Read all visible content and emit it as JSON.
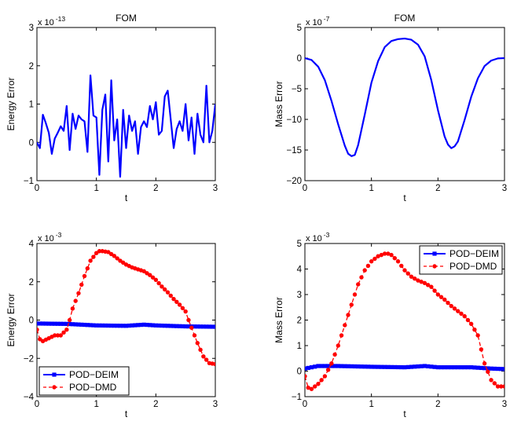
{
  "colors": {
    "blue": "#0000ff",
    "red": "#ff0000"
  },
  "chart_data": [
    {
      "type": "line",
      "title": "FOM",
      "xlabel": "t",
      "ylabel": "Energy Error",
      "exponent_label": "x 10",
      "exponent_power": "-13",
      "xlim": [
        0,
        3
      ],
      "ylim": [
        -1,
        3
      ],
      "xticks": [
        "0",
        "1",
        "2",
        "3"
      ],
      "yticks": [
        "−1",
        "0",
        "1",
        "2",
        "3"
      ],
      "series": [
        {
          "color": "#0000ff",
          "marker": "none",
          "x": [
            0,
            0.05,
            0.1,
            0.15,
            0.2,
            0.25,
            0.3,
            0.35,
            0.4,
            0.45,
            0.5,
            0.55,
            0.6,
            0.65,
            0.7,
            0.75,
            0.8,
            0.85,
            0.9,
            0.95,
            1.0,
            1.05,
            1.1,
            1.15,
            1.2,
            1.25,
            1.3,
            1.35,
            1.4,
            1.45,
            1.5,
            1.55,
            1.6,
            1.65,
            1.7,
            1.75,
            1.8,
            1.85,
            1.9,
            1.95,
            2.0,
            2.05,
            2.1,
            2.15,
            2.2,
            2.25,
            2.3,
            2.35,
            2.4,
            2.45,
            2.5,
            2.55,
            2.6,
            2.65,
            2.7,
            2.75,
            2.8,
            2.85,
            2.9,
            2.95,
            3.0
          ],
          "y": [
            0.0,
            -0.15,
            0.72,
            0.5,
            0.25,
            -0.3,
            0.1,
            0.25,
            0.42,
            0.3,
            0.95,
            -0.2,
            0.75,
            0.35,
            0.7,
            0.6,
            0.55,
            -0.25,
            1.75,
            0.7,
            0.65,
            -0.85,
            0.85,
            1.25,
            -0.5,
            1.62,
            0.05,
            0.6,
            -0.9,
            0.85,
            -0.15,
            0.7,
            0.3,
            0.55,
            -0.3,
            0.4,
            0.55,
            0.4,
            0.95,
            0.6,
            1.05,
            0.2,
            0.3,
            1.2,
            1.35,
            0.6,
            -0.15,
            0.35,
            0.55,
            0.3,
            1.0,
            0.05,
            0.65,
            -0.3,
            0.75,
            0.2,
            0.0,
            1.48,
            0.0,
            0.3,
            1.0
          ]
        }
      ]
    },
    {
      "type": "line",
      "title": "FOM",
      "xlabel": "t",
      "ylabel": "Mass Error",
      "exponent_label": "x 10",
      "exponent_power": "-7",
      "xlim": [
        0,
        3
      ],
      "ylim": [
        -20,
        5
      ],
      "xticks": [
        "0",
        "1",
        "2",
        "3"
      ],
      "yticks": [
        "−20",
        "−15",
        "−10",
        "−5",
        "0",
        "5"
      ],
      "series": [
        {
          "color": "#0000ff",
          "marker": "none",
          "x": [
            0,
            0.1,
            0.2,
            0.3,
            0.4,
            0.5,
            0.6,
            0.65,
            0.7,
            0.75,
            0.8,
            0.9,
            1.0,
            1.1,
            1.2,
            1.3,
            1.4,
            1.5,
            1.6,
            1.7,
            1.8,
            1.9,
            2.0,
            2.1,
            2.15,
            2.2,
            2.25,
            2.3,
            2.4,
            2.5,
            2.6,
            2.7,
            2.8,
            2.9,
            3.0
          ],
          "y": [
            0.0,
            -0.3,
            -1.4,
            -3.6,
            -7.0,
            -10.8,
            -14.3,
            -15.6,
            -16.0,
            -15.8,
            -14.2,
            -9.2,
            -4.0,
            -0.5,
            1.8,
            2.8,
            3.1,
            3.2,
            3.0,
            2.2,
            0.3,
            -3.6,
            -8.5,
            -12.8,
            -14.1,
            -14.7,
            -14.4,
            -13.6,
            -10.1,
            -6.3,
            -3.3,
            -1.3,
            -0.4,
            -0.05,
            0.0
          ]
        }
      ]
    },
    {
      "type": "line",
      "title": "",
      "xlabel": "t",
      "ylabel": "Energy Error",
      "exponent_label": "x 10",
      "exponent_power": "-3",
      "xlim": [
        0,
        3
      ],
      "ylim": [
        -4,
        4
      ],
      "xticks": [
        "0",
        "1",
        "2",
        "3"
      ],
      "yticks": [
        "−4",
        "−2",
        "0",
        "2",
        "4"
      ],
      "legend": "bottom-left",
      "series": [
        {
          "name": "POD−DEIM",
          "color": "#0000ff",
          "marker": "square",
          "x": [
            0,
            0.5,
            1.0,
            1.5,
            1.8,
            2.0,
            2.5,
            3.0
          ],
          "y": [
            -0.18,
            -0.2,
            -0.28,
            -0.3,
            -0.24,
            -0.28,
            -0.33,
            -0.35
          ]
        },
        {
          "name": "POD−DMD",
          "color": "#ff0000",
          "marker": "circle",
          "x": [
            0,
            0.05,
            0.1,
            0.2,
            0.3,
            0.4,
            0.5,
            0.55,
            0.6,
            0.7,
            0.8,
            0.9,
            1.0,
            1.05,
            1.1,
            1.2,
            1.3,
            1.4,
            1.5,
            1.6,
            1.7,
            1.8,
            1.9,
            2.0,
            2.1,
            2.2,
            2.3,
            2.4,
            2.5,
            2.55,
            2.6,
            2.7,
            2.8,
            2.9,
            3.0
          ],
          "y": [
            -0.5,
            -1.0,
            -1.1,
            -0.95,
            -0.8,
            -0.8,
            -0.5,
            0.0,
            0.6,
            1.4,
            2.3,
            3.1,
            3.5,
            3.6,
            3.6,
            3.55,
            3.35,
            3.1,
            2.9,
            2.75,
            2.65,
            2.55,
            2.35,
            2.1,
            1.75,
            1.45,
            1.1,
            0.8,
            0.45,
            0.0,
            -0.4,
            -1.2,
            -1.9,
            -2.25,
            -2.3
          ]
        }
      ]
    },
    {
      "type": "line",
      "title": "",
      "xlabel": "t",
      "ylabel": "Mass Error",
      "exponent_label": "x 10",
      "exponent_power": "-3",
      "xlim": [
        0,
        3
      ],
      "ylim": [
        -1,
        5
      ],
      "xticks": [
        "0",
        "1",
        "2",
        "3"
      ],
      "yticks": [
        "−1",
        "0",
        "1",
        "2",
        "3",
        "4",
        "5"
      ],
      "legend": "top-right",
      "series": [
        {
          "name": "POD−DEIM",
          "color": "#0000ff",
          "marker": "square",
          "x": [
            0,
            0.2,
            0.5,
            1.0,
            1.5,
            1.8,
            2.0,
            2.5,
            2.8,
            3.0
          ],
          "y": [
            0.1,
            0.2,
            0.2,
            0.17,
            0.15,
            0.2,
            0.15,
            0.15,
            0.1,
            0.08
          ]
        },
        {
          "name": "POD−DMD",
          "color": "#ff0000",
          "marker": "circle",
          "x": [
            0,
            0.05,
            0.1,
            0.2,
            0.3,
            0.4,
            0.5,
            0.6,
            0.7,
            0.8,
            0.9,
            1.0,
            1.1,
            1.2,
            1.25,
            1.3,
            1.4,
            1.5,
            1.6,
            1.7,
            1.8,
            1.9,
            2.0,
            2.1,
            2.2,
            2.3,
            2.4,
            2.5,
            2.6,
            2.7,
            2.8,
            2.9,
            3.0
          ],
          "y": [
            -0.2,
            -0.65,
            -0.7,
            -0.5,
            -0.2,
            0.3,
            1.0,
            1.8,
            2.6,
            3.4,
            3.95,
            4.3,
            4.5,
            4.6,
            4.6,
            4.55,
            4.3,
            3.95,
            3.7,
            3.55,
            3.45,
            3.3,
            3.0,
            2.8,
            2.55,
            2.35,
            2.15,
            1.85,
            1.4,
            0.3,
            -0.35,
            -0.6,
            -0.6
          ]
        }
      ]
    }
  ]
}
